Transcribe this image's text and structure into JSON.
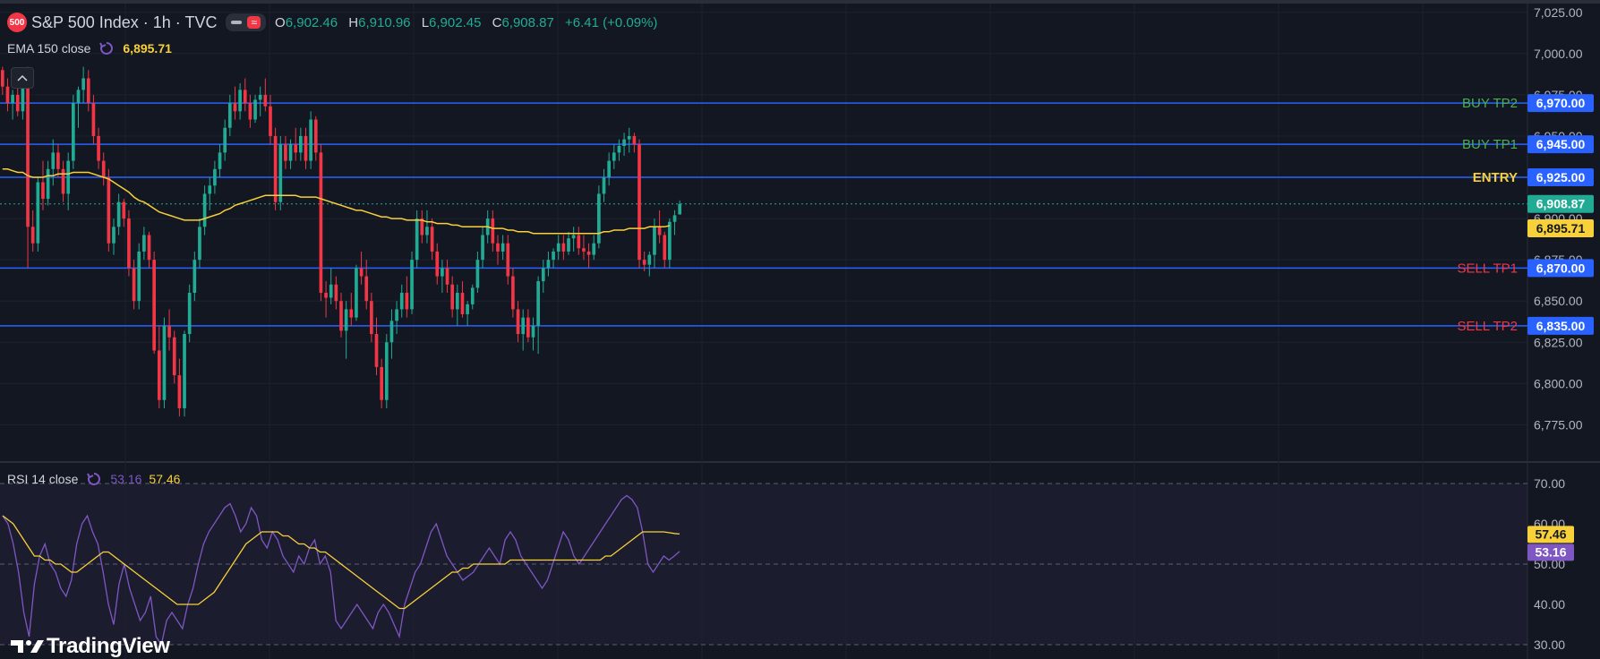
{
  "header": {
    "badge": "500",
    "title": "S&P 500 Index · 1h · TVC",
    "ohlc": {
      "o_label": "O",
      "o": "6,902.46",
      "h_label": "H",
      "h": "6,910.96",
      "l_label": "L",
      "l": "6,902.45",
      "c_label": "C",
      "c": "6,908.87",
      "change": "+6.41 (+0.09%)"
    }
  },
  "ema_legend": {
    "name": "EMA 150 close",
    "value": "6,895.71"
  },
  "rsi_legend": {
    "name": "RSI 14 close",
    "value_rsi": "53.16",
    "value_ma": "57.46"
  },
  "branding": {
    "logo_text": "TradingView"
  },
  "colors": {
    "background": "#131722",
    "up": "#22ab94",
    "down": "#f23645",
    "ema": "#f7d03a",
    "rsi": "#7e57c2",
    "level_line": "#2962ff",
    "buy_label": "#4caf50",
    "sell_label": "#f23645",
    "entry_label": "#f7d03a"
  },
  "chart_data": [
    {
      "type": "candlestick",
      "title": "S&P 500 Index · 1h · TVC",
      "ylim": [
        6760,
        7030
      ],
      "y_ticks": [
        "7,025.00",
        "7,000.00",
        "6,975.00",
        "6,950.00",
        "6,925.00",
        "6,900.00",
        "6,875.00",
        "6,850.00",
        "6,825.00",
        "6,800.00",
        "6,775.00"
      ],
      "candles": [
        [
          6990,
          6992,
          6975,
          6980
        ],
        [
          6980,
          6985,
          6965,
          6970
        ],
        [
          6970,
          6978,
          6960,
          6975
        ],
        [
          6975,
          6988,
          6962,
          6965
        ],
        [
          6965,
          6990,
          6960,
          6988
        ],
        [
          6988,
          6992,
          6870,
          6895
        ],
        [
          6895,
          6905,
          6880,
          6885
        ],
        [
          6885,
          6925,
          6880,
          6922
        ],
        [
          6922,
          6935,
          6905,
          6912
        ],
        [
          6912,
          6935,
          6908,
          6930
        ],
        [
          6930,
          6948,
          6920,
          6940
        ],
        [
          6940,
          6945,
          6925,
          6930
        ],
        [
          6930,
          6935,
          6910,
          6915
        ],
        [
          6915,
          6940,
          6905,
          6935
        ],
        [
          6935,
          6975,
          6930,
          6970
        ],
        [
          6970,
          6980,
          6955,
          6978
        ],
        [
          6978,
          6992,
          6970,
          6985
        ],
        [
          6985,
          6990,
          6965,
          6970
        ],
        [
          6970,
          6975,
          6945,
          6950
        ],
        [
          6950,
          6955,
          6930,
          6935
        ],
        [
          6935,
          6940,
          6920,
          6925
        ],
        [
          6925,
          6930,
          6880,
          6885
        ],
        [
          6885,
          6900,
          6878,
          6895
        ],
        [
          6895,
          6915,
          6890,
          6910
        ],
        [
          6910,
          6912,
          6895,
          6900
        ],
        [
          6900,
          6905,
          6865,
          6870
        ],
        [
          6870,
          6875,
          6845,
          6850
        ],
        [
          6850,
          6885,
          6845,
          6880
        ],
        [
          6880,
          6895,
          6875,
          6890
        ],
        [
          6890,
          6892,
          6870,
          6875
        ],
        [
          6875,
          6880,
          6818,
          6820
        ],
        [
          6820,
          6835,
          6785,
          6790
        ],
        [
          6790,
          6840,
          6785,
          6835
        ],
        [
          6835,
          6845,
          6820,
          6828
        ],
        [
          6828,
          6832,
          6800,
          6805
        ],
        [
          6805,
          6815,
          6780,
          6785
        ],
        [
          6785,
          6832,
          6780,
          6830
        ],
        [
          6830,
          6860,
          6825,
          6855
        ],
        [
          6855,
          6880,
          6850,
          6875
        ],
        [
          6875,
          6900,
          6870,
          6895
        ],
        [
          6895,
          6920,
          6890,
          6915
        ],
        [
          6915,
          6925,
          6905,
          6920
        ],
        [
          6920,
          6935,
          6915,
          6930
        ],
        [
          6930,
          6945,
          6925,
          6940
        ],
        [
          6940,
          6960,
          6935,
          6955
        ],
        [
          6955,
          6975,
          6950,
          6970
        ],
        [
          6970,
          6980,
          6960,
          6965
        ],
        [
          6965,
          6982,
          6960,
          6978
        ],
        [
          6978,
          6985,
          6965,
          6970
        ],
        [
          6970,
          6975,
          6955,
          6960
        ],
        [
          6960,
          6975,
          6958,
          6972
        ],
        [
          6972,
          6980,
          6962,
          6975
        ],
        [
          6975,
          6985,
          6965,
          6968
        ],
        [
          6968,
          6975,
          6945,
          6950
        ],
        [
          6950,
          6955,
          6905,
          6910
        ],
        [
          6910,
          6950,
          6905,
          6945
        ],
        [
          6945,
          6950,
          6930,
          6935
        ],
        [
          6935,
          6948,
          6930,
          6945
        ],
        [
          6945,
          6955,
          6935,
          6940
        ],
        [
          6940,
          6955,
          6935,
          6950
        ],
        [
          6950,
          6955,
          6930,
          6935
        ],
        [
          6935,
          6965,
          6930,
          6960
        ],
        [
          6960,
          6962,
          6935,
          6940
        ],
        [
          6940,
          6945,
          6850,
          6855
        ],
        [
          6855,
          6862,
          6840,
          6852
        ],
        [
          6852,
          6870,
          6848,
          6860
        ],
        [
          6860,
          6865,
          6845,
          6850
        ],
        [
          6850,
          6855,
          6828,
          6832
        ],
        [
          6832,
          6850,
          6815,
          6845
        ],
        [
          6845,
          6855,
          6835,
          6840
        ],
        [
          6840,
          6872,
          6838,
          6870
        ],
        [
          6870,
          6880,
          6860,
          6865
        ],
        [
          6865,
          6875,
          6845,
          6850
        ],
        [
          6850,
          6855,
          6825,
          6830
        ],
        [
          6830,
          6840,
          6805,
          6810
        ],
        [
          6810,
          6815,
          6785,
          6790
        ],
        [
          6790,
          6830,
          6785,
          6825
        ],
        [
          6825,
          6845,
          6815,
          6838
        ],
        [
          6838,
          6850,
          6830,
          6845
        ],
        [
          6845,
          6860,
          6840,
          6855
        ],
        [
          6855,
          6865,
          6840,
          6845
        ],
        [
          6845,
          6880,
          6842,
          6875
        ],
        [
          6875,
          6905,
          6870,
          6900
        ],
        [
          6900,
          6905,
          6885,
          6890
        ],
        [
          6890,
          6905,
          6885,
          6895
        ],
        [
          6895,
          6900,
          6875,
          6880
        ],
        [
          6880,
          6885,
          6860,
          6865
        ],
        [
          6865,
          6875,
          6855,
          6870
        ],
        [
          6870,
          6875,
          6855,
          6860
        ],
        [
          6860,
          6865,
          6840,
          6845
        ],
        [
          6845,
          6860,
          6835,
          6855
        ],
        [
          6855,
          6862,
          6840,
          6842
        ],
        [
          6842,
          6850,
          6835,
          6848
        ],
        [
          6848,
          6860,
          6845,
          6858
        ],
        [
          6858,
          6880,
          6855,
          6875
        ],
        [
          6875,
          6895,
          6870,
          6890
        ],
        [
          6890,
          6905,
          6885,
          6900
        ],
        [
          6900,
          6905,
          6880,
          6885
        ],
        [
          6885,
          6890,
          6872,
          6880
        ],
        [
          6880,
          6890,
          6875,
          6885
        ],
        [
          6885,
          6890,
          6860,
          6865
        ],
        [
          6865,
          6870,
          6840,
          6845
        ],
        [
          6845,
          6850,
          6825,
          6830
        ],
        [
          6830,
          6845,
          6820,
          6840
        ],
        [
          6840,
          6845,
          6825,
          6828
        ],
        [
          6828,
          6840,
          6820,
          6835
        ],
        [
          6835,
          6865,
          6818,
          6862
        ],
        [
          6862,
          6875,
          6855,
          6870
        ],
        [
          6870,
          6880,
          6865,
          6875
        ],
        [
          6875,
          6882,
          6870,
          6880
        ],
        [
          6880,
          6890,
          6875,
          6885
        ],
        [
          6885,
          6890,
          6875,
          6880
        ],
        [
          6880,
          6892,
          6878,
          6888
        ],
        [
          6888,
          6895,
          6880,
          6890
        ],
        [
          6890,
          6895,
          6878,
          6882
        ],
        [
          6882,
          6890,
          6875,
          6880
        ],
        [
          6880,
          6885,
          6870,
          6878
        ],
        [
          6878,
          6890,
          6875,
          6885
        ],
        [
          6885,
          6920,
          6882,
          6915
        ],
        [
          6915,
          6930,
          6910,
          6925
        ],
        [
          6925,
          6940,
          6920,
          6935
        ],
        [
          6935,
          6945,
          6930,
          6940
        ],
        [
          6940,
          6948,
          6935,
          6944
        ],
        [
          6944,
          6952,
          6938,
          6948
        ],
        [
          6948,
          6955,
          6940,
          6950
        ],
        [
          6950,
          6952,
          6940,
          6945
        ],
        [
          6945,
          6948,
          6870,
          6875
        ],
        [
          6875,
          6880,
          6868,
          6872
        ],
        [
          6872,
          6880,
          6865,
          6878
        ],
        [
          6878,
          6900,
          6870,
          6895
        ],
        [
          6895,
          6905,
          6885,
          6890
        ],
        [
          6890,
          6892,
          6870,
          6875
        ],
        [
          6875,
          6900,
          6870,
          6898
        ],
        [
          6898,
          6905,
          6890,
          6902
        ],
        [
          6902.46,
          6910.96,
          6902.45,
          6908.87
        ]
      ],
      "ema": [
        6930,
        6930,
        6929,
        6928,
        6928,
        6926,
        6925,
        6925,
        6925,
        6926,
        6926,
        6927,
        6927,
        6927,
        6928,
        6928,
        6928,
        6928,
        6927,
        6926,
        6925,
        6924,
        6922,
        6920,
        6918,
        6916,
        6913,
        6911,
        6910,
        6908,
        6906,
        6904,
        6903,
        6902,
        6901,
        6900,
        6899,
        6899,
        6899,
        6899,
        6900,
        6901,
        6902,
        6903,
        6905,
        6906,
        6908,
        6909,
        6910,
        6911,
        6912,
        6913,
        6914,
        6914,
        6914,
        6914,
        6914,
        6914,
        6914,
        6913,
        6913,
        6913,
        6913,
        6912,
        6911,
        6910,
        6909,
        6908,
        6907,
        6906,
        6905,
        6905,
        6904,
        6903,
        6902,
        6901,
        6901,
        6900,
        6900,
        6900,
        6899,
        6899,
        6899,
        6899,
        6898,
        6898,
        6897,
        6897,
        6897,
        6896,
        6896,
        6895,
        6895,
        6895,
        6895,
        6895,
        6895,
        6894,
        6894,
        6894,
        6893,
        6893,
        6892,
        6892,
        6892,
        6891,
        6891,
        6891,
        6891,
        6891,
        6891,
        6891,
        6891,
        6891,
        6891,
        6891,
        6891,
        6891,
        6891,
        6892,
        6892,
        6893,
        6893,
        6893,
        6894,
        6894,
        6894,
        6894,
        6895,
        6895,
        6895,
        6895,
        6895.71
      ],
      "levels": [
        {
          "label": "BUY TP2",
          "value": 6970,
          "tag": "6,970.00",
          "kind": "buy"
        },
        {
          "label": "BUY TP1",
          "value": 6945,
          "tag": "6,945.00",
          "kind": "buy"
        },
        {
          "label": "ENTRY",
          "value": 6925,
          "tag": "6,925.00",
          "kind": "entry"
        },
        {
          "label": "SELL TP1",
          "value": 6870,
          "tag": "6,870.00",
          "kind": "sell"
        },
        {
          "label": "SELL TP2",
          "value": 6835,
          "tag": "6,835.00",
          "kind": "sell"
        }
      ],
      "last_price": {
        "value": 6908.87,
        "tag": "6,908.87"
      },
      "ema_last": {
        "value": 6895.71,
        "tag": "6,895.71"
      }
    },
    {
      "type": "line",
      "title": "RSI 14 close",
      "ylim": [
        30,
        70
      ],
      "y_ticks": [
        "70.00",
        "60.00",
        "50.00",
        "40.00",
        "30.00"
      ],
      "series": [
        {
          "name": "RSI",
          "values": [
            62,
            60,
            55,
            48,
            38,
            32,
            45,
            52,
            55,
            50,
            48,
            44,
            42,
            46,
            55,
            60,
            62,
            58,
            55,
            48,
            40,
            35,
            45,
            50,
            44,
            40,
            36,
            38,
            42,
            32,
            30,
            36,
            38,
            36,
            34,
            40,
            44,
            50,
            55,
            58,
            60,
            62,
            64,
            65,
            62,
            58,
            60,
            64,
            62,
            56,
            54,
            58,
            56,
            52,
            50,
            48,
            52,
            50,
            54,
            56,
            50,
            52,
            48,
            36,
            34,
            36,
            38,
            40,
            38,
            36,
            34,
            38,
            40,
            38,
            35,
            32,
            40,
            44,
            48,
            50,
            54,
            58,
            60,
            56,
            52,
            50,
            48,
            46,
            47,
            48,
            50,
            52,
            54,
            52,
            50,
            56,
            58,
            56,
            52,
            50,
            48,
            46,
            44,
            46,
            50,
            54,
            58,
            56,
            52,
            50,
            52,
            54,
            56,
            58,
            60,
            62,
            64,
            66,
            67,
            66,
            64,
            58,
            50,
            48,
            50,
            52,
            51,
            52,
            53.16
          ]
        },
        {
          "name": "RSI MA",
          "values": [
            62,
            61,
            60,
            58,
            56,
            54,
            52,
            52,
            51,
            51,
            50,
            50,
            49,
            48,
            48,
            49,
            50,
            51,
            52,
            53,
            53,
            52,
            51,
            50,
            49,
            48,
            47,
            46,
            45,
            44,
            43,
            42,
            41,
            40,
            40,
            40,
            40,
            40,
            41,
            42,
            43,
            45,
            47,
            49,
            51,
            53,
            55,
            56,
            57,
            58,
            58,
            58,
            58,
            57,
            57,
            56,
            55,
            55,
            54,
            54,
            53,
            53,
            52,
            51,
            50,
            49,
            48,
            47,
            46,
            45,
            44,
            43,
            42,
            41,
            40,
            39,
            39,
            40,
            41,
            42,
            43,
            44,
            45,
            46,
            47,
            48,
            48,
            49,
            49,
            50,
            50,
            50,
            50,
            50,
            50,
            50,
            51,
            51,
            51,
            51,
            51,
            51,
            51,
            51,
            51,
            51,
            51,
            51,
            51,
            51,
            51,
            51,
            51,
            51,
            52,
            52,
            53,
            54,
            55,
            56,
            57,
            58,
            58,
            58,
            58,
            58,
            57.8,
            57.6,
            57.46
          ]
        }
      ]
    }
  ]
}
